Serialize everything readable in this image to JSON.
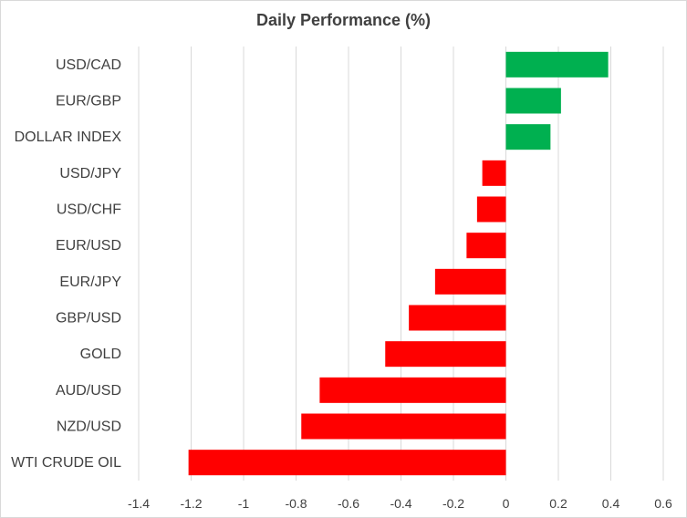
{
  "chart_data": {
    "type": "bar",
    "orientation": "horizontal",
    "title": "Daily Performance (%)",
    "xlabel": "",
    "ylabel": "",
    "xlim": [
      -1.4,
      0.6
    ],
    "xticks": [
      -1.4,
      -1.2,
      -1,
      -0.8,
      -0.6,
      -0.4,
      -0.2,
      0,
      0.2,
      0.4,
      0.6
    ],
    "grid": "vertical",
    "legend": "none",
    "colors": {
      "positive": "#00b050",
      "negative": "#ff0000",
      "grid": "#d9d9d9"
    },
    "categories": [
      "USD/CAD",
      "EUR/GBP",
      "DOLLAR INDEX",
      "USD/JPY",
      "USD/CHF",
      "EUR/USD",
      "EUR/JPY",
      "GBP/USD",
      "GOLD",
      "AUD/USD",
      "NZD/USD",
      "WTI CRUDE OIL"
    ],
    "values": [
      0.39,
      0.21,
      0.17,
      -0.09,
      -0.11,
      -0.15,
      -0.27,
      -0.37,
      -0.46,
      -0.71,
      -0.78,
      -1.21
    ]
  }
}
